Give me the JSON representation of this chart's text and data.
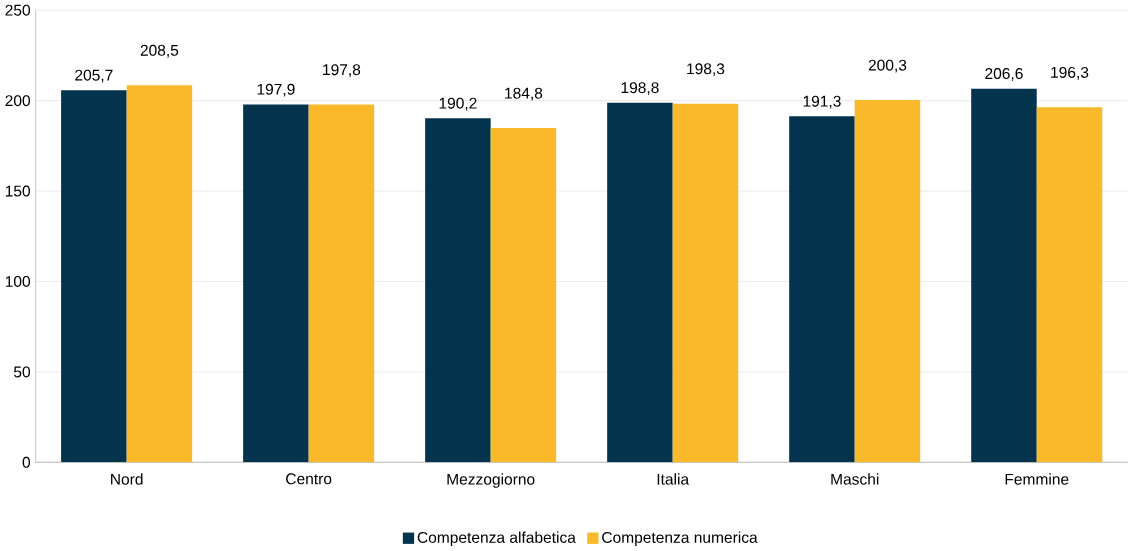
{
  "chart_data": {
    "type": "bar",
    "categories": [
      "Nord",
      "Centro",
      "Mezzogiorno",
      "Italia",
      "Maschi",
      "Femmine"
    ],
    "series": [
      {
        "name": "Competenza alfabetica",
        "color": "#03334d",
        "values": [
          205.7,
          197.9,
          190.2,
          198.8,
          191.3,
          206.6
        ],
        "value_labels": [
          "205,7",
          "197,9",
          "190,2",
          "198,8",
          "191,3",
          "206,6"
        ]
      },
      {
        "name": "Competenza numerica",
        "color": "#f9b92b",
        "values": [
          208.5,
          197.8,
          184.8,
          198.3,
          200.3,
          196.3
        ],
        "value_labels": [
          "208,5",
          "197,8",
          "184,8",
          "198,3",
          "200,3",
          "196,3"
        ]
      }
    ],
    "ylim": [
      0,
      250
    ],
    "yticks": [
      0,
      50,
      100,
      150,
      200,
      250
    ],
    "grid": "y",
    "legend": "bottom"
  }
}
